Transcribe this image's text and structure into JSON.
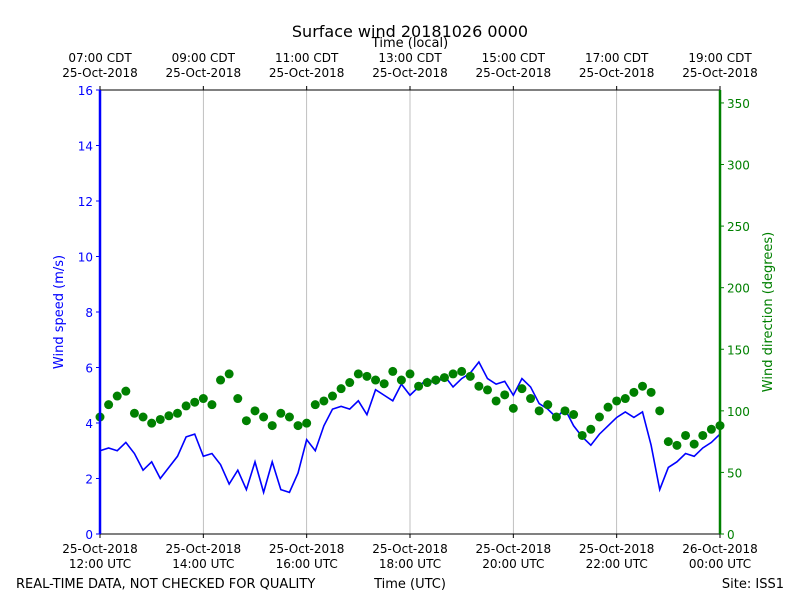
{
  "chart_data": {
    "type": "line",
    "title": "Surface wind 20181026 0000",
    "x2label": "Time (local)",
    "xlabel": "Time (UTC)",
    "ylabel": "Wind speed (m/s)",
    "y2label": "Wind direction (degrees)",
    "footer_left": "REAL-TIME DATA, NOT CHECKED FOR QUALITY",
    "footer_right": "Site: ISS1",
    "grid": "x",
    "xlim": [
      "2018-10-25 12:00",
      "2018-10-26 00:00"
    ],
    "xticks": [
      {
        "value": "2018-10-25 12:00",
        "label": [
          "25-Oct-2018",
          "12:00 UTC"
        ]
      },
      {
        "value": "2018-10-25 14:00",
        "label": [
          "25-Oct-2018",
          "14:00 UTC"
        ]
      },
      {
        "value": "2018-10-25 16:00",
        "label": [
          "25-Oct-2018",
          "16:00 UTC"
        ]
      },
      {
        "value": "2018-10-25 18:00",
        "label": [
          "25-Oct-2018",
          "18:00 UTC"
        ]
      },
      {
        "value": "2018-10-25 20:00",
        "label": [
          "25-Oct-2018",
          "20:00 UTC"
        ]
      },
      {
        "value": "2018-10-25 22:00",
        "label": [
          "25-Oct-2018",
          "22:00 UTC"
        ]
      },
      {
        "value": "2018-10-26 00:00",
        "label": [
          "26-Oct-2018",
          "00:00 UTC"
        ]
      }
    ],
    "x2ticks": [
      {
        "value": "2018-10-25 12:00",
        "label": [
          "07:00 CDT",
          "25-Oct-2018"
        ]
      },
      {
        "value": "2018-10-25 14:00",
        "label": [
          "09:00 CDT",
          "25-Oct-2018"
        ]
      },
      {
        "value": "2018-10-25 16:00",
        "label": [
          "11:00 CDT",
          "25-Oct-2018"
        ]
      },
      {
        "value": "2018-10-25 18:00",
        "label": [
          "13:00 CDT",
          "25-Oct-2018"
        ]
      },
      {
        "value": "2018-10-25 20:00",
        "label": [
          "15:00 CDT",
          "25-Oct-2018"
        ]
      },
      {
        "value": "2018-10-25 22:00",
        "label": [
          "17:00 CDT",
          "25-Oct-2018"
        ]
      },
      {
        "value": "2018-10-26 00:00",
        "label": [
          "19:00 CDT",
          "25-Oct-2018"
        ]
      }
    ],
    "ylim": [
      0,
      16
    ],
    "yticks": [
      0,
      2,
      4,
      6,
      8,
      10,
      12,
      14,
      16
    ],
    "y2lim": [
      0,
      360.5
    ],
    "y2ticks": [
      0,
      50,
      100,
      150,
      200,
      250,
      300,
      350
    ],
    "y_color": "#0000ff",
    "y2_color": "#008000",
    "x": [
      "2018-10-25 12:00",
      "2018-10-25 12:10",
      "2018-10-25 12:20",
      "2018-10-25 12:30",
      "2018-10-25 12:40",
      "2018-10-25 12:50",
      "2018-10-25 13:00",
      "2018-10-25 13:10",
      "2018-10-25 13:20",
      "2018-10-25 13:30",
      "2018-10-25 13:40",
      "2018-10-25 13:50",
      "2018-10-25 14:00",
      "2018-10-25 14:10",
      "2018-10-25 14:20",
      "2018-10-25 14:30",
      "2018-10-25 14:40",
      "2018-10-25 14:50",
      "2018-10-25 15:00",
      "2018-10-25 15:10",
      "2018-10-25 15:20",
      "2018-10-25 15:30",
      "2018-10-25 15:40",
      "2018-10-25 15:50",
      "2018-10-25 16:00",
      "2018-10-25 16:10",
      "2018-10-25 16:20",
      "2018-10-25 16:30",
      "2018-10-25 16:40",
      "2018-10-25 16:50",
      "2018-10-25 17:00",
      "2018-10-25 17:10",
      "2018-10-25 17:20",
      "2018-10-25 17:30",
      "2018-10-25 17:40",
      "2018-10-25 17:50",
      "2018-10-25 18:00",
      "2018-10-25 18:10",
      "2018-10-25 18:20",
      "2018-10-25 18:30",
      "2018-10-25 18:40",
      "2018-10-25 18:50",
      "2018-10-25 19:00",
      "2018-10-25 19:10",
      "2018-10-25 19:20",
      "2018-10-25 19:30",
      "2018-10-25 19:40",
      "2018-10-25 19:50",
      "2018-10-25 20:00",
      "2018-10-25 20:10",
      "2018-10-25 20:20",
      "2018-10-25 20:30",
      "2018-10-25 20:40",
      "2018-10-25 20:50",
      "2018-10-25 21:00",
      "2018-10-25 21:10",
      "2018-10-25 21:20",
      "2018-10-25 21:30",
      "2018-10-25 21:40",
      "2018-10-25 21:50",
      "2018-10-25 22:00",
      "2018-10-25 22:10",
      "2018-10-25 22:20",
      "2018-10-25 22:30",
      "2018-10-25 22:40",
      "2018-10-25 22:50",
      "2018-10-25 23:00",
      "2018-10-25 23:10",
      "2018-10-25 23:20",
      "2018-10-25 23:30",
      "2018-10-25 23:40",
      "2018-10-25 23:50",
      "2018-10-26 00:00"
    ],
    "series": [
      {
        "name": "Wind speed",
        "type": "line",
        "axis": "y",
        "color": "#0000ff",
        "values": [
          3.0,
          3.1,
          3.0,
          3.3,
          2.9,
          2.3,
          2.6,
          2.0,
          2.4,
          2.8,
          3.5,
          3.6,
          2.8,
          2.9,
          2.5,
          1.8,
          2.3,
          1.6,
          2.6,
          1.5,
          2.6,
          1.6,
          1.5,
          2.2,
          3.4,
          3.0,
          3.9,
          4.5,
          4.6,
          4.5,
          4.8,
          4.3,
          5.2,
          5.0,
          4.8,
          5.4,
          5.0,
          5.3,
          5.6,
          5.4,
          5.7,
          5.3,
          5.6,
          5.8,
          6.2,
          5.6,
          5.4,
          5.5,
          5.0,
          5.6,
          5.3,
          4.7,
          4.5,
          4.2,
          4.5,
          3.9,
          3.5,
          3.2,
          3.6,
          3.9,
          4.2,
          4.4,
          4.2,
          4.4,
          3.2,
          1.6,
          2.4,
          2.6,
          2.9,
          2.8,
          3.1,
          3.3,
          3.6
        ]
      },
      {
        "name": "Wind direction",
        "type": "scatter",
        "axis": "y2",
        "color": "#008000",
        "values": [
          95,
          105,
          112,
          116,
          98,
          95,
          90,
          93,
          96,
          98,
          104,
          107,
          110,
          105,
          125,
          130,
          110,
          92,
          100,
          95,
          88,
          98,
          95,
          88,
          90,
          105,
          108,
          112,
          118,
          123,
          130,
          128,
          125,
          122,
          132,
          125,
          130,
          120,
          123,
          125,
          127,
          130,
          132,
          128,
          120,
          117,
          108,
          113,
          102,
          118,
          110,
          100,
          105,
          95,
          100,
          97,
          80,
          85,
          95,
          103,
          108,
          110,
          115,
          120,
          115,
          100,
          75,
          72,
          80,
          73,
          80,
          85,
          88
        ]
      }
    ]
  }
}
